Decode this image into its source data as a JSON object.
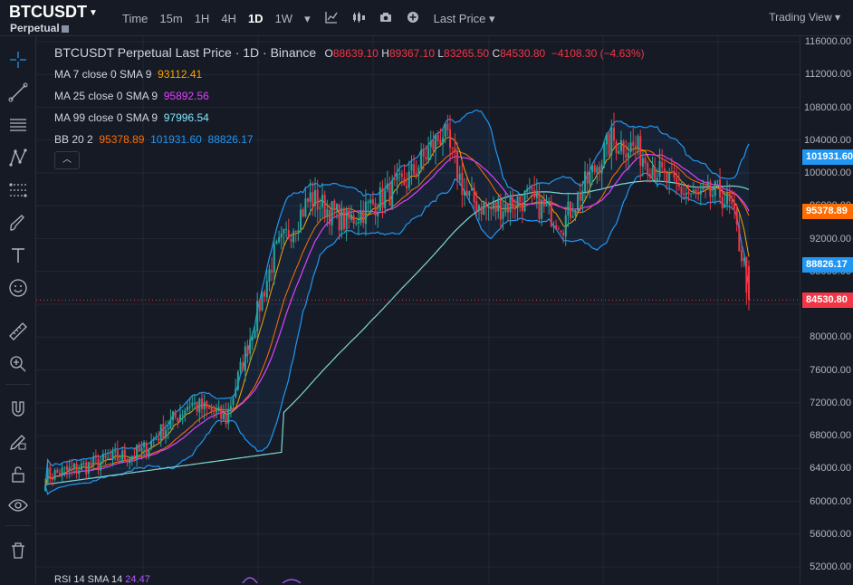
{
  "header": {
    "symbol": "BTCUSDT",
    "contract_type": "Perpetual",
    "time_label": "Time",
    "timeframes": [
      "15m",
      "1H",
      "4H",
      "1D",
      "1W"
    ],
    "active_timeframe": "1D",
    "price_type": "Last Price",
    "view_mode": "Trading View"
  },
  "legend": {
    "title": "BTCUSDT Perpetual Last Price · 1D · Binance",
    "open_key": "O",
    "open": "88639.10",
    "high_key": "H",
    "high": "89367.10",
    "low_key": "L",
    "low": "83265.50",
    "close_key": "C",
    "close": "84530.80",
    "change": "−4108.30 (−4.63%)",
    "ma7_label": "MA 7 close 0 SMA 9",
    "ma7_value": "93112.41",
    "ma25_label": "MA 25 close 0 SMA 9",
    "ma25_value": "95892.56",
    "ma99_label": "MA 99 close 0 SMA 9",
    "ma99_value": "97996.54",
    "bb_label": "BB 20 2",
    "bb_basis": "95378.89",
    "bb_upper": "101931.60",
    "bb_lower": "88826.17",
    "rsi_label": "RSI 14 SMA 14",
    "rsi_value": "24.47"
  },
  "price_axis": {
    "ticks": [
      "116000.00",
      "112000.00",
      "108000.00",
      "104000.00",
      "100000.00",
      "96000.00",
      "92000.00",
      "88000.00",
      "84000.00",
      "80000.00",
      "76000.00",
      "72000.00",
      "68000.00",
      "64000.00",
      "60000.00",
      "56000.00",
      "52000.00"
    ],
    "badges": [
      {
        "label": "101931.60",
        "value": 101931.6,
        "color": "#2196f3"
      },
      {
        "label": "95378.89",
        "value": 95378.89,
        "color": "#ff6d00"
      },
      {
        "label": "88826.17",
        "value": 88826.17,
        "color": "#2196f3"
      },
      {
        "label": "84530.80",
        "value": 84530.8,
        "color": "#f23645"
      }
    ]
  },
  "colors": {
    "up": "#26a69a",
    "down": "#f23645",
    "ma7": "#f7a600",
    "ma25": "#e040fb",
    "ma99": "#7fd8d0",
    "bb_basis": "#ff6d00",
    "bb_band": "#2196f3"
  },
  "toolbar": {
    "icons": [
      "crosshair-icon",
      "trend-line-icon",
      "horizontal-lines-icon",
      "pattern-icon",
      "fib-icon",
      "brush-icon",
      "text-icon",
      "emoji-icon",
      "ruler-icon",
      "zoom-icon",
      "magnet-icon",
      "lock-drawing-icon",
      "lock-icon",
      "eye-icon",
      "trash-icon"
    ]
  },
  "chart_data": {
    "type": "candlestick",
    "y_range": [
      50000,
      117000
    ],
    "key_points": [
      {
        "x": 0,
        "close": 63000
      },
      {
        "x": 40,
        "close": 66000
      },
      {
        "x": 60,
        "close": 72000
      },
      {
        "x": 75,
        "close": 70000
      },
      {
        "x": 95,
        "close": 90000
      },
      {
        "x": 110,
        "close": 97000
      },
      {
        "x": 125,
        "close": 94000
      },
      {
        "x": 150,
        "close": 99000
      },
      {
        "x": 165,
        "close": 105000
      },
      {
        "x": 175,
        "close": 97000
      },
      {
        "x": 185,
        "close": 95500
      },
      {
        "x": 200,
        "close": 97000
      },
      {
        "x": 215,
        "close": 94000
      },
      {
        "x": 235,
        "close": 104000
      },
      {
        "x": 245,
        "close": 103000
      },
      {
        "x": 260,
        "close": 98500
      },
      {
        "x": 270,
        "close": 97000
      },
      {
        "x": 280,
        "close": 97500
      },
      {
        "x": 285,
        "close": 95500
      },
      {
        "x": 290,
        "close": 88700
      },
      {
        "x": 292,
        "close": 84530
      }
    ]
  }
}
